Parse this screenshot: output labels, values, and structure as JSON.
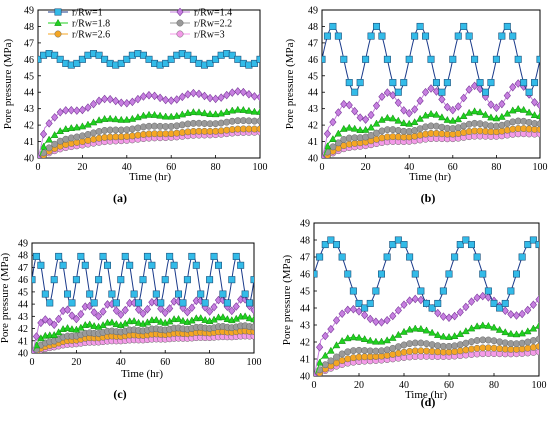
{
  "figure": {
    "panels": [
      "(a)",
      "(b)",
      "(c)",
      "(d)"
    ]
  },
  "chart_data": [
    {
      "panel_label": "(a)",
      "type": "line",
      "xlabel": "Time (hr)",
      "ylabel": "Pore pressure (MPa)",
      "xlim": [
        0,
        100
      ],
      "ylim": [
        40,
        49
      ],
      "xticks": [
        "0",
        "20",
        "40",
        "60",
        "80",
        "100"
      ],
      "yticks": [
        "40",
        "41",
        "42",
        "43",
        "44",
        "45",
        "46",
        "47",
        "48",
        "49"
      ],
      "legend": {
        "placement": "top",
        "columns": 2
      },
      "series": [
        {
          "name": "r/Rw=1",
          "color": "#33BBE8",
          "marker": "square",
          "base": 46.0,
          "amp": 0.35,
          "period": 20,
          "phase_shift": 0
        },
        {
          "name": "r/Rw=1.4",
          "color": "#C77FE0",
          "marker": "diamond",
          "rise": [
            41.4,
            43.4,
            43.9
          ],
          "amp": 0.2,
          "period": 20
        },
        {
          "name": "r/Rw=1.8",
          "color": "#1FD11F",
          "marker": "triangle",
          "rise": [
            40.5,
            42.2,
            42.9
          ],
          "amp": 0.1,
          "period": 20
        },
        {
          "name": "r/Rw=2.2",
          "color": "#9A9A9A",
          "marker": "circle",
          "rise": [
            40.1,
            41.5,
            42.3
          ],
          "amp": 0.05,
          "period": 20
        },
        {
          "name": "r/Rw=2.6",
          "color": "#F5A623",
          "marker": "circle",
          "rise": [
            40.0,
            41.1,
            41.8
          ],
          "amp": 0.03,
          "period": 20
        },
        {
          "name": "r/Rw=3",
          "color": "#F49AE8",
          "marker": "circle",
          "rise": [
            40.0,
            40.8,
            41.6
          ],
          "amp": 0.02,
          "period": 20
        }
      ]
    },
    {
      "panel_label": "(b)",
      "type": "line",
      "xlabel": "Time (hr)",
      "ylabel": "Pore pressure (MPa)",
      "xlim": [
        0,
        100
      ],
      "ylim": [
        40,
        49
      ],
      "xticks": [
        "0",
        "20",
        "40",
        "60",
        "80",
        "100"
      ],
      "yticks": [
        "40",
        "41",
        "42",
        "43",
        "44",
        "45",
        "46",
        "47",
        "48",
        "49"
      ],
      "series": [
        {
          "name": "r/Rw=1",
          "base": 46.0,
          "amp": 2.0,
          "period": 20
        },
        {
          "name": "r/Rw=1.4",
          "rise": [
            41.6,
            43.2,
            43.9
          ],
          "amp": 0.7,
          "period": 20
        },
        {
          "name": "r/Rw=1.8",
          "rise": [
            40.6,
            42.1,
            42.8
          ],
          "amp": 0.25,
          "period": 20
        },
        {
          "name": "r/Rw=2.2",
          "rise": [
            40.2,
            41.5,
            42.2
          ],
          "amp": 0.12,
          "period": 20
        },
        {
          "name": "r/Rw=2.6",
          "rise": [
            40.0,
            41.1,
            41.8
          ],
          "amp": 0.06,
          "period": 20
        },
        {
          "name": "r/Rw=3",
          "rise": [
            40.0,
            40.8,
            41.5
          ],
          "amp": 0.04,
          "period": 20
        }
      ]
    },
    {
      "panel_label": "(c)",
      "type": "line",
      "xlabel": "Time (hr)",
      "ylabel": "Pore pressure (MPa)",
      "xlim": [
        0,
        100
      ],
      "ylim": [
        40,
        49
      ],
      "xticks": [
        "0",
        "20",
        "40",
        "60",
        "80",
        "100"
      ],
      "yticks": [
        "40",
        "41",
        "42",
        "43",
        "44",
        "45",
        "46",
        "47",
        "48",
        "49"
      ],
      "series": [
        {
          "name": "r/Rw=1",
          "base": 46.0,
          "amp": 2.0,
          "period": 10
        },
        {
          "name": "r/Rw=1.4",
          "rise": [
            41.8,
            43.5,
            44.0
          ],
          "amp": 0.5,
          "period": 10
        },
        {
          "name": "r/Rw=1.8",
          "rise": [
            40.7,
            42.2,
            42.9
          ],
          "amp": 0.15,
          "period": 10
        },
        {
          "name": "r/Rw=2.2",
          "rise": [
            40.2,
            41.6,
            42.2
          ],
          "amp": 0.07,
          "period": 10
        },
        {
          "name": "r/Rw=2.6",
          "rise": [
            40.0,
            41.2,
            41.8
          ],
          "amp": 0.04,
          "period": 10
        },
        {
          "name": "r/Rw=3",
          "rise": [
            40.0,
            40.8,
            41.4
          ],
          "amp": 0.02,
          "period": 10
        }
      ]
    },
    {
      "panel_label": "(d)",
      "type": "line",
      "xlabel": "Time (hr)",
      "ylabel": "Pore pressure (MPa)",
      "xlim": [
        0,
        100
      ],
      "ylim": [
        40,
        49
      ],
      "xticks": [
        "0",
        "20",
        "40",
        "60",
        "80",
        "100"
      ],
      "yticks": [
        "40",
        "41",
        "42",
        "43",
        "44",
        "45",
        "46",
        "47",
        "48",
        "49"
      ],
      "series": [
        {
          "name": "r/Rw=1",
          "base": 46.0,
          "amp": 2.0,
          "period": 30
        },
        {
          "name": "r/Rw=1.4",
          "rise": [
            41.8,
            43.8,
            44.2
          ],
          "amp": 0.6,
          "period": 30
        },
        {
          "name": "r/Rw=1.8",
          "rise": [
            40.7,
            42.3,
            42.8
          ],
          "amp": 0.3,
          "period": 30
        },
        {
          "name": "r/Rw=2.2",
          "rise": [
            40.2,
            41.6,
            42.1
          ],
          "amp": 0.15,
          "period": 30
        },
        {
          "name": "r/Rw=2.6",
          "rise": [
            40.0,
            41.2,
            41.7
          ],
          "amp": 0.08,
          "period": 30
        },
        {
          "name": "r/Rw=3",
          "rise": [
            40.0,
            40.9,
            41.4
          ],
          "amp": 0.04,
          "period": 30
        }
      ]
    }
  ]
}
